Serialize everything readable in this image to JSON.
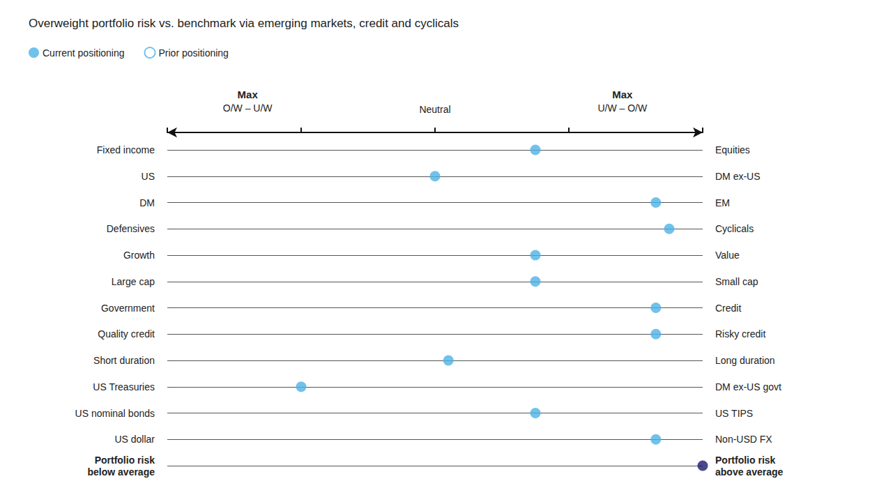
{
  "chart_data": {
    "type": "scatter",
    "subtitle": "Overweight portfolio risk vs. benchmark via emerging markets, credit and cyclicals",
    "categories": [
      "Fixed income",
      "US",
      "DM",
      "Defensives",
      "Growth",
      "Large cap",
      "Government",
      "Quality credit",
      "Short duration",
      "US Treasuries",
      "US nominal bonds",
      "US dollar",
      "Portfolio risk\nbelow average"
    ],
    "right_categories": [
      "Equities",
      "DM ex-US",
      "EM",
      "Cyclicals",
      "Value",
      "Small cap",
      "Credit",
      "Risky credit",
      "Long duration",
      "DM ex-US govt",
      "US TIPS",
      "Non-USD FX",
      "Portfolio risk\nabove average"
    ],
    "series": [
      {
        "name": "Current positioning",
        "color": "#4db3e6",
        "colors": [
          "#4db3e6",
          "#4db3e6",
          "#4db3e6",
          "#4db3e6",
          "#4db3e6",
          "#4db3e6",
          "#4db3e6",
          "#4db3e6",
          "#4db3e6",
          "#4db3e6",
          "#4db3e6",
          "#4db3e6",
          "#1a1a6e"
        ],
        "values": [
          1.5,
          0.0,
          3.3,
          3.5,
          1.5,
          1.5,
          3.3,
          3.3,
          0.2,
          -2.0,
          1.5,
          3.3,
          4.0
        ]
      },
      {
        "name": "Prior positioning",
        "values": [
          null,
          null,
          null,
          null,
          null,
          null,
          null,
          null,
          null,
          null,
          null,
          null,
          null
        ]
      }
    ],
    "axis_label_left": [
      "Max",
      "O/W – U/W"
    ],
    "axis_label_right": [
      "Max",
      "U/W – O/W"
    ],
    "axis_label_neutral": "Neutral",
    "xlim": [
      -4,
      4
    ],
    "xticks": [
      -4,
      -2,
      0,
      2,
      4
    ],
    "tick_labels": "y",
    "grid": true,
    "legend": "top-left"
  }
}
